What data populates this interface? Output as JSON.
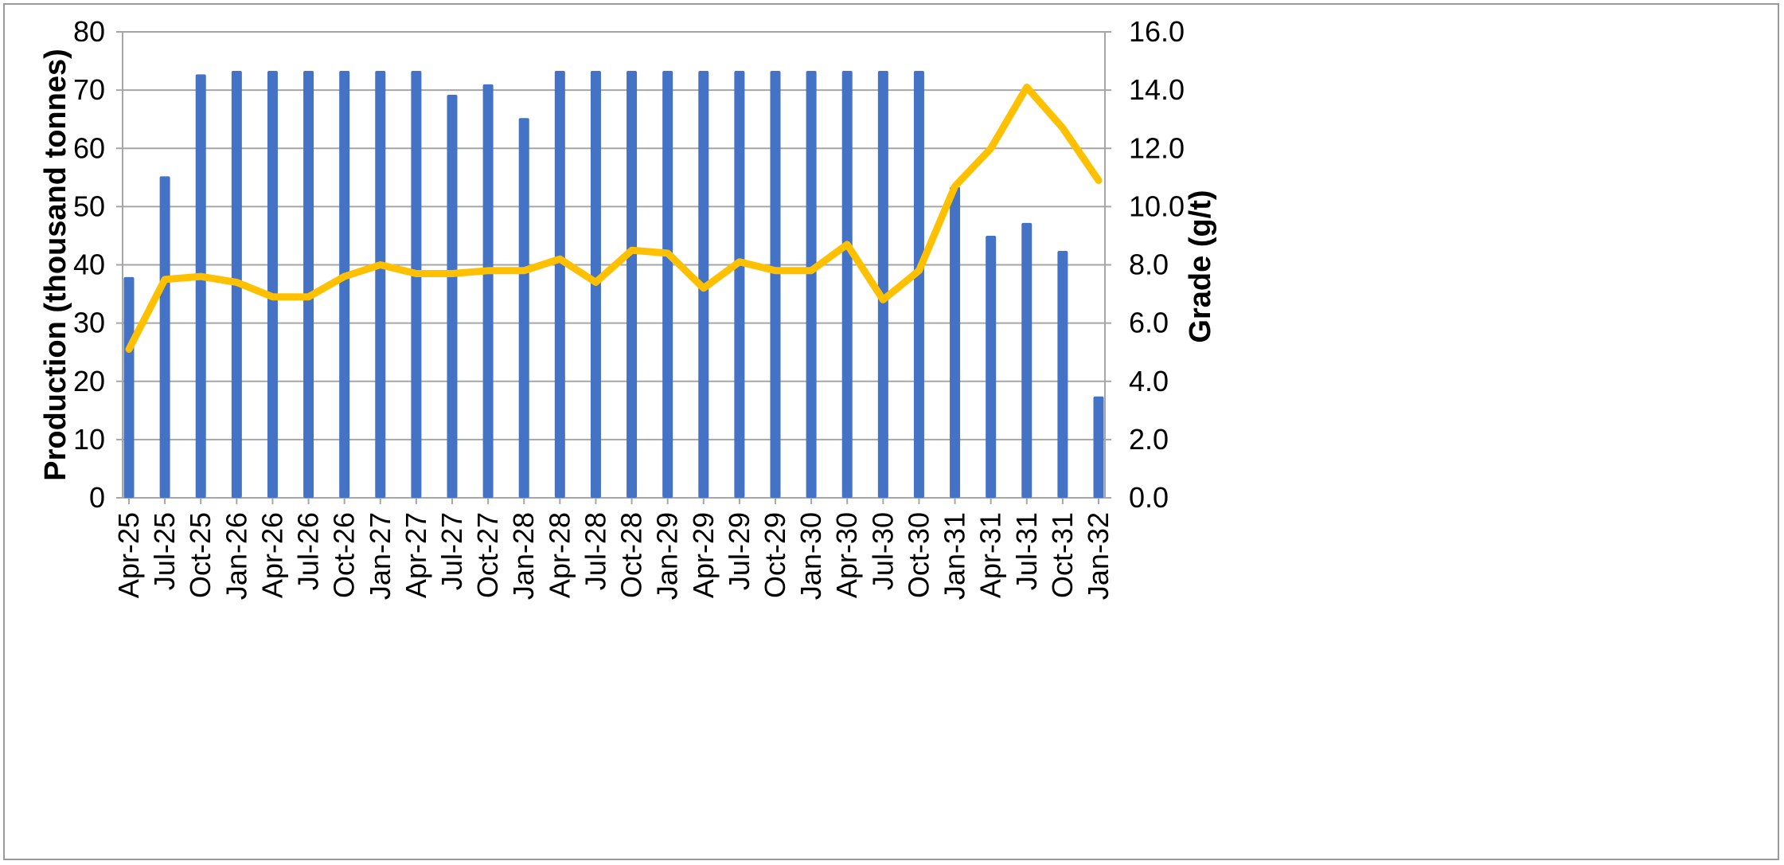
{
  "chart_data": {
    "type": "bar",
    "categories": [
      "Apr-25",
      "Jul-25",
      "Oct-25",
      "Jan-26",
      "Apr-26",
      "Jul-26",
      "Oct-26",
      "Jan-27",
      "Apr-27",
      "Jul-27",
      "Oct-27",
      "Jan-28",
      "Apr-28",
      "Jul-28",
      "Oct-28",
      "Jan-29",
      "Apr-29",
      "Jul-29",
      "Oct-29",
      "Jan-30",
      "Apr-30",
      "Jul-30",
      "Oct-30",
      "Jan-31",
      "Apr-31",
      "Jul-31",
      "Oct-31",
      "Jan-32"
    ],
    "series": [
      {
        "type": "bar",
        "axis": "left",
        "color": "#4472C4",
        "values": [
          37.9,
          55.2,
          72.7,
          73.3,
          73.3,
          73.3,
          73.3,
          73.3,
          73.3,
          69.2,
          71.0,
          65.2,
          73.3,
          73.3,
          73.3,
          73.3,
          73.3,
          73.3,
          73.3,
          73.3,
          73.3,
          73.3,
          73.3,
          53.4,
          45.0,
          47.2,
          42.4,
          17.4
        ]
      },
      {
        "type": "line",
        "axis": "right",
        "color": "#FFC000",
        "values": [
          5.1,
          7.5,
          7.6,
          7.4,
          6.9,
          6.9,
          7.6,
          8.0,
          7.7,
          7.7,
          7.8,
          7.8,
          8.2,
          7.4,
          8.5,
          8.4,
          7.2,
          8.1,
          7.8,
          7.8,
          8.7,
          6.8,
          7.8,
          10.7,
          12.0,
          14.1,
          12.7,
          10.9
        ]
      }
    ],
    "y_left": {
      "label": "Production  (thousand tonnes)",
      "min": 0,
      "max": 80,
      "step": 10,
      "ticks": [
        "0",
        "10",
        "20",
        "30",
        "40",
        "50",
        "60",
        "70",
        "80"
      ]
    },
    "y_right": {
      "label": "Grade (g/t)",
      "min": 0,
      "max": 16,
      "step": 2,
      "ticks": [
        "0.0",
        "2.0",
        "4.0",
        "6.0",
        "8.0",
        "10.0",
        "12.0",
        "14.0",
        "16.0"
      ]
    },
    "title": "",
    "xlabel": "",
    "grid": true,
    "legend": "none",
    "colors": {
      "grid": "#A6A6A6",
      "axis": "#A6A6A6",
      "frame": "#9A9A9A"
    }
  }
}
